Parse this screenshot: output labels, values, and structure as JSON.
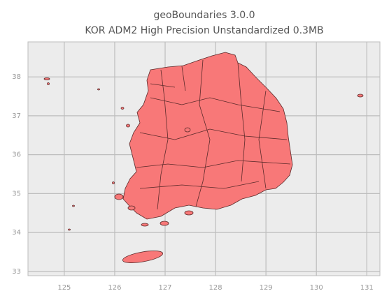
{
  "chart_data": {
    "type": "map",
    "title": "geoBoundaries 3.0.0",
    "subtitle": "KOR ADM2 High Precision Unstandardized 0.3MB",
    "xlim": [
      124.28,
      131.26
    ],
    "ylim": [
      32.89,
      38.9
    ],
    "xticks": [
      125,
      126,
      127,
      128,
      129,
      130,
      131
    ],
    "yticks": [
      33,
      34,
      35,
      36,
      37,
      38
    ],
    "grid": true,
    "color": "#f87878"
  }
}
